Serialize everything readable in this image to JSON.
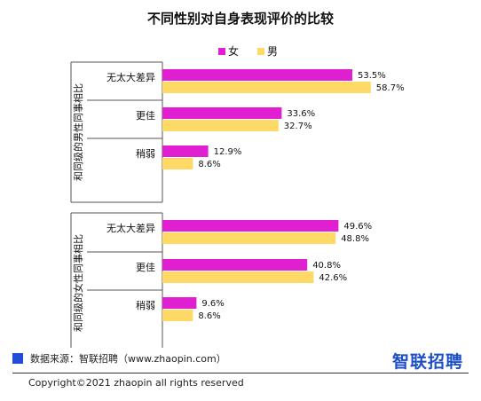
{
  "chart_data": {
    "type": "bar",
    "orientation": "horizontal",
    "title": "不同性别对自身表现评价的比较",
    "legend_position": "top-center",
    "group_labels": [
      "和同级的男性同事相比",
      "和同级的女性同事相比"
    ],
    "categories": [
      "无太大差异",
      "更佳",
      "稍弱"
    ],
    "series": [
      {
        "name": "女",
        "color": "#e01fd0",
        "values": [
          [
            53.5,
            33.6,
            12.9
          ],
          [
            49.6,
            40.8,
            9.6
          ]
        ]
      },
      {
        "name": "男",
        "color": "#ffd966",
        "values": [
          [
            58.7,
            32.7,
            8.6
          ],
          [
            48.8,
            42.6,
            8.6
          ]
        ]
      }
    ],
    "value_suffix": "%",
    "xlim": [
      0,
      100
    ],
    "grid": false
  },
  "footer": {
    "source": "数据来源：智联招聘（www.zhaopin.com）",
    "logo": "智联招聘",
    "copyright": "Copyright©2021 zhaopin all rights reserved"
  }
}
